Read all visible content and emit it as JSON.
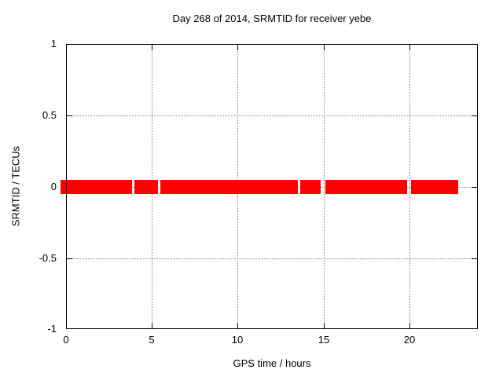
{
  "window": {
    "background": "#ffffff"
  },
  "chart_data": {
    "type": "line",
    "title": "Day 268 of 2014, SRMTID for receiver yebe",
    "xlabel": "GPS time / hours",
    "ylabel": "SRMTID / TECUs",
    "xlim": [
      0,
      24
    ],
    "ylim": [
      -1,
      1
    ],
    "x_ticks": [
      0,
      5,
      10,
      15,
      20
    ],
    "x_tick_labels": [
      "0",
      "5",
      "10",
      "15",
      "20"
    ],
    "y_ticks": [
      1,
      0.5,
      0,
      -0.5,
      -1
    ],
    "y_tick_labels": [
      "1",
      "0.5",
      "0",
      "-0.5",
      "-1"
    ],
    "grid": true,
    "grid_style": "dotted",
    "grid_color": "#808080",
    "border_color": "#000000",
    "text_color": "#000000",
    "legend": "none",
    "series": [
      {
        "name": "SRMTID",
        "style": "horizontal-band-segments",
        "color": "#ff0000",
        "y_value": 0,
        "band_thickness_tecus": 0.05,
        "segments_hours": [
          [
            -0.3,
            3.85
          ],
          [
            3.99,
            5.36
          ],
          [
            5.5,
            13.51
          ],
          [
            13.65,
            14.84
          ],
          [
            15.12,
            19.88
          ],
          [
            20.11,
            22.86
          ]
        ]
      }
    ]
  }
}
